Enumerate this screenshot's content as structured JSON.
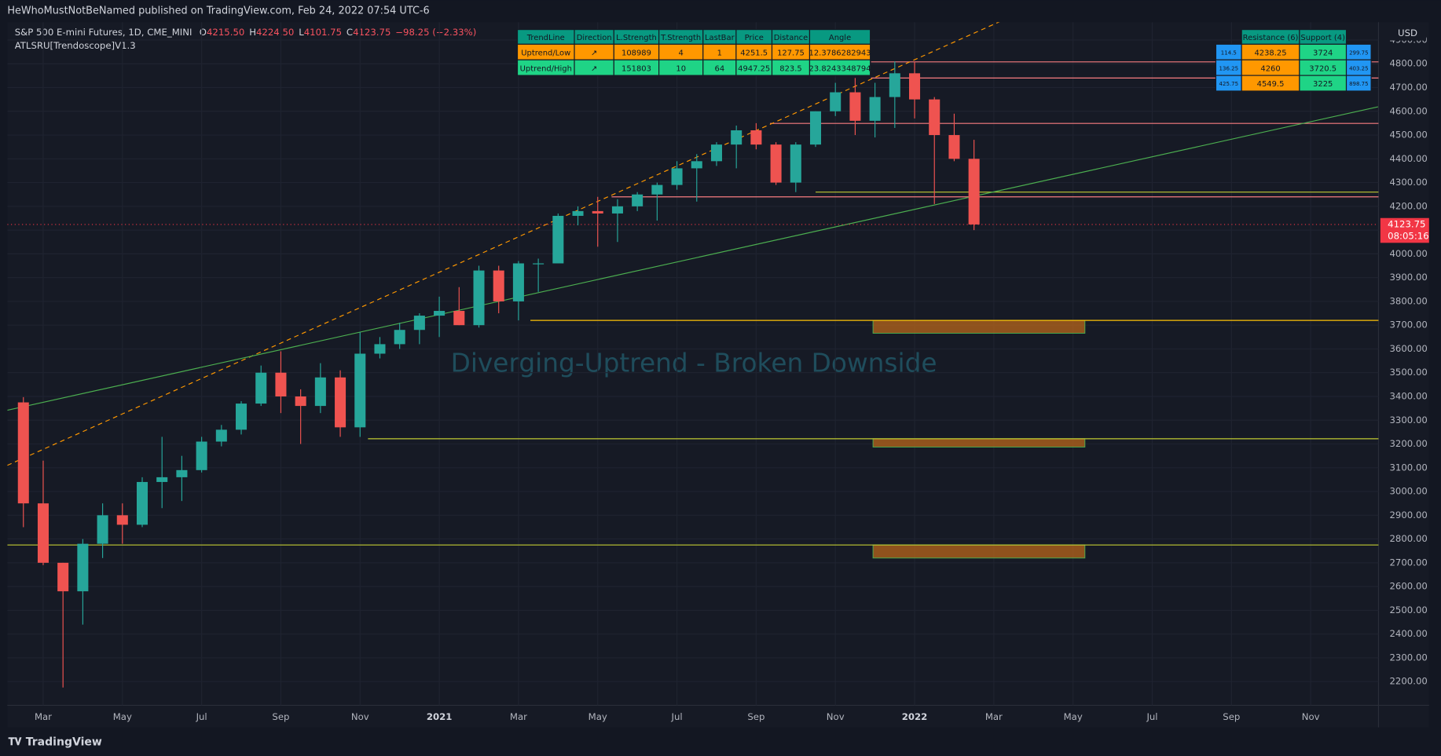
{
  "header": {
    "publisher": "HeWhoMustNotBeNamed published on TradingView.com, Feb 24, 2022 07:54 UTC-6",
    "symbol": "S&P 500 E-mini Futures, 1D, CME_MINI",
    "ohlc": [
      {
        "label": "O",
        "value": "4215.50"
      },
      {
        "label": "H",
        "value": "4224.50"
      },
      {
        "label": "L",
        "value": "4101.75"
      },
      {
        "label": "C",
        "value": "4123.75"
      }
    ],
    "change": "−98.25 (−2.33%)",
    "indicator": "ATLSRU[Trendoscope]V1.3"
  },
  "footer": {
    "brand": "TradingView"
  },
  "chart_data": {
    "type": "candlestick",
    "currency": "USD",
    "annotation": "Diverging-Uptrend - Broken Downside",
    "categories": [
      null,
      "Mar",
      null,
      null,
      null,
      "May",
      null,
      null,
      null,
      "Jul",
      null,
      null,
      null,
      "Sep",
      null,
      null,
      null,
      "Nov",
      null,
      null,
      null,
      "2021",
      null,
      null,
      null,
      "Mar",
      null,
      null,
      null,
      "May",
      null,
      null,
      null,
      "Jul",
      null,
      null,
      null,
      "Sep",
      null,
      null,
      null,
      "Nov",
      null,
      null,
      null,
      "2022",
      null,
      null,
      null,
      "Mar",
      null,
      null,
      null,
      "May",
      null,
      null,
      null,
      "Jul",
      null,
      null,
      null,
      "Sep",
      null,
      null,
      null,
      "Nov",
      null,
      null,
      null
    ],
    "open": [
      3375,
      2950,
      2700,
      2580,
      2780,
      2900,
      2860,
      3040,
      3060,
      3090,
      3210,
      3260,
      3370,
      3500,
      3400,
      3360,
      3480,
      3270,
      3580,
      3620,
      3680,
      3740,
      3760,
      3700,
      3930,
      3800,
      3960,
      3960,
      4160,
      4180,
      4170,
      4200,
      4250,
      4290,
      4360,
      4390,
      4460,
      4520,
      4460,
      4300,
      4460,
      4600,
      4680,
      4560,
      4660,
      4760,
      4650,
      4500,
      4400,
      null,
      null,
      null,
      null,
      null,
      null,
      null,
      null,
      null,
      null,
      null,
      null,
      null,
      null,
      null,
      null,
      null,
      null,
      null,
      null
    ],
    "high": [
      3397,
      3130,
      2700,
      2800,
      2950,
      2950,
      3060,
      3230,
      3150,
      3230,
      3280,
      3380,
      3530,
      3590,
      3430,
      3540,
      3510,
      3670,
      3650,
      3710,
      3750,
      3820,
      3860,
      3950,
      3950,
      3970,
      3980,
      4170,
      4200,
      4240,
      4230,
      4260,
      4300,
      4390,
      4420,
      4470,
      4540,
      4550,
      4470,
      4470,
      4600,
      4720,
      4740,
      4720,
      4810,
      4810,
      4660,
      4590,
      4480,
      null,
      null,
      null,
      null,
      null,
      null,
      null,
      null,
      null,
      null,
      null,
      null,
      null,
      null,
      null,
      null,
      null,
      null,
      null,
      null
    ],
    "low": [
      2850,
      2690,
      2175,
      2440,
      2720,
      2780,
      2850,
      2930,
      2960,
      3080,
      3190,
      3240,
      3360,
      3330,
      3200,
      3330,
      3230,
      3230,
      3560,
      3600,
      3620,
      3650,
      3700,
      3690,
      3750,
      3720,
      3840,
      3960,
      4120,
      4030,
      4050,
      4180,
      4140,
      4270,
      4220,
      4370,
      4360,
      4440,
      4290,
      4260,
      4450,
      4580,
      4500,
      4490,
      4530,
      4570,
      4210,
      4390,
      4100,
      null,
      null,
      null,
      null,
      null,
      null,
      null,
      null,
      null,
      null,
      null,
      null,
      null,
      null,
      null,
      null,
      null,
      null,
      null,
      null
    ],
    "close": [
      2950,
      2700,
      2580,
      2780,
      2900,
      2860,
      3040,
      3060,
      3090,
      3210,
      3260,
      3370,
      3500,
      3400,
      3360,
      3480,
      3270,
      3580,
      3620,
      3680,
      3740,
      3760,
      3700,
      3930,
      3800,
      3960,
      3960,
      4160,
      4180,
      4170,
      4200,
      4250,
      4290,
      4360,
      4390,
      4460,
      4520,
      4460,
      4300,
      4460,
      4600,
      4680,
      4560,
      4660,
      4760,
      4650,
      4500,
      4400,
      4123.75,
      null,
      null,
      null,
      null,
      null,
      null,
      null,
      null,
      null,
      null,
      null,
      null,
      null,
      null,
      null,
      null,
      null,
      null,
      null,
      null
    ],
    "up_color": "#26a69a",
    "down_color": "#ef5350",
    "ylim": [
      2100,
      4975
    ],
    "yticks": [
      {
        "value": 2200,
        "label": "2200.00"
      },
      {
        "value": 2300,
        "label": "2300.00"
      },
      {
        "value": 2400,
        "label": "2400.00"
      },
      {
        "value": 2500,
        "label": "2500.00"
      },
      {
        "value": 2600,
        "label": "2600.00"
      },
      {
        "value": 2700,
        "label": "2700.00"
      },
      {
        "value": 2800,
        "label": "2800.00"
      },
      {
        "value": 2900,
        "label": "2900.00"
      },
      {
        "value": 3000,
        "label": "3000.00"
      },
      {
        "value": 3100,
        "label": "3100.00"
      },
      {
        "value": 3200,
        "label": "3200.00"
      },
      {
        "value": 3300,
        "label": "3300.00"
      },
      {
        "value": 3400,
        "label": "3400.00"
      },
      {
        "value": 3500,
        "label": "3500.00"
      },
      {
        "value": 3600,
        "label": "3600.00"
      },
      {
        "value": 3700,
        "label": "3700.00"
      },
      {
        "value": 3800,
        "label": "3800.00"
      },
      {
        "value": 3900,
        "label": "3900.00"
      },
      {
        "value": 4000,
        "label": "4000.00"
      },
      {
        "value": 4100,
        "label": "4100.00"
      },
      {
        "value": 4200,
        "label": "4200.00"
      },
      {
        "value": 4300,
        "label": "4300.00"
      },
      {
        "value": 4400,
        "label": "4400.00"
      },
      {
        "value": 4500,
        "label": "4500.00"
      },
      {
        "value": 4600,
        "label": "4600.00"
      },
      {
        "value": 4700,
        "label": "4700.00"
      },
      {
        "value": 4800,
        "label": "4800.00"
      },
      {
        "value": 4900,
        "label": "4900.00"
      }
    ],
    "grid": true,
    "last_price": {
      "value": 4123.75,
      "countdown": "08:05:16",
      "color": "#f23645"
    },
    "lines": [
      {
        "x": [
          -0.81,
          49.4
        ],
        "y": [
          3110,
          4981
        ],
        "color": "#ff9800",
        "dash": true
      },
      {
        "x": [
          -0.81,
          68.4
        ],
        "y": [
          3342,
          4619
        ],
        "color": "#4caf50",
        "dash": false
      }
    ],
    "levels": [
      {
        "value": 4808,
        "from": 42.8,
        "color": "#f77c80"
      },
      {
        "value": 4740,
        "from": 42.8,
        "color": "#f77c80"
      },
      {
        "value": 4549,
        "from": 37.7,
        "color": "#f77c80"
      },
      {
        "value": 4240,
        "from": 29.7,
        "color": "#f77c80"
      },
      {
        "value": 4260,
        "from": 40.0,
        "color": "#c0ca33"
      },
      {
        "value": 3720,
        "from": 25.6,
        "color": "#ffc107"
      },
      {
        "value": 3222,
        "from": 17.4,
        "color": "#c0ca33"
      },
      {
        "value": 2775,
        "from": -0.81,
        "color": "#c0ca33"
      }
    ],
    "zones": [
      {
        "from": 42.9,
        "to": 53.6,
        "y": [
          3666,
          3720
        ]
      },
      {
        "from": 42.9,
        "to": 53.6,
        "y": [
          3187,
          3222
        ]
      },
      {
        "from": 42.9,
        "to": 53.6,
        "y": [
          2720,
          2775
        ]
      }
    ],
    "zone_color": "#b8651b"
  },
  "tables": [
    {
      "header": [
        "TrendLine",
        "Direction",
        "L.Strength",
        "T.Strength",
        "LastBar",
        "Price",
        "Distance",
        "Angle"
      ],
      "header_color": "#089981",
      "row_colors": [
        "#ff9800",
        "#1fd486"
      ],
      "rows": [
        [
          "Uptrend/Low",
          "↗",
          "108989",
          "4",
          "1",
          "4251.5",
          "127.75",
          "12.3786282943"
        ],
        [
          "Uptrend/High",
          "↗",
          "151803",
          "10",
          "64",
          "4947.25",
          "823.5",
          "23.8243348794"
        ]
      ]
    },
    {
      "header": [
        "Resistance (6)",
        "Support (4)"
      ],
      "header_color": "#089981",
      "column_colors": [
        "#2196f3",
        "#ff9800",
        "#1fd486",
        "#2196f3"
      ],
      "rows": [
        [
          "114.5",
          "4238.25",
          "3724",
          "299.75"
        ],
        [
          "136.25",
          "4260",
          "3720.5",
          "403.25"
        ],
        [
          "425.75",
          "4549.5",
          "3225",
          "898.75"
        ]
      ]
    }
  ]
}
